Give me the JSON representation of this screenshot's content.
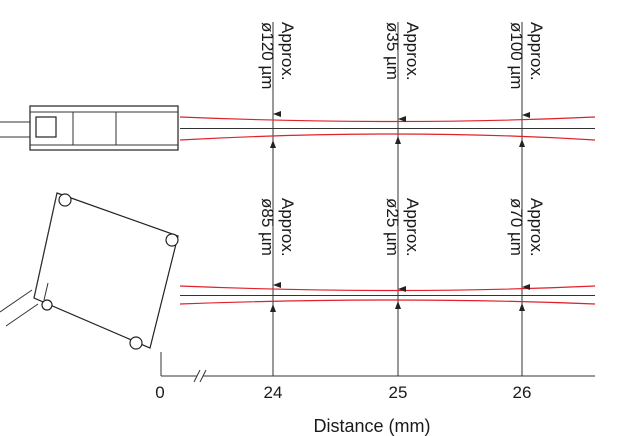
{
  "x_axis": {
    "title": "Distance (mm)",
    "ticks": [
      "0",
      "24",
      "25",
      "26"
    ]
  },
  "sensor_top": {
    "spots": [
      {
        "line1": "Approx.",
        "line2": "ø120 µm"
      },
      {
        "line1": "Approx.",
        "line2": "ø35 µm"
      },
      {
        "line1": "Approx.",
        "line2": "ø100 µm"
      }
    ]
  },
  "sensor_bottom": {
    "spots": [
      {
        "line1": "Approx.",
        "line2": "ø85 µm"
      },
      {
        "line1": "Approx.",
        "line2": "ø25 µm"
      },
      {
        "line1": "Approx.",
        "line2": "ø70 µm"
      }
    ]
  },
  "colors": {
    "beam": "#e0202a",
    "line": "#333333"
  }
}
